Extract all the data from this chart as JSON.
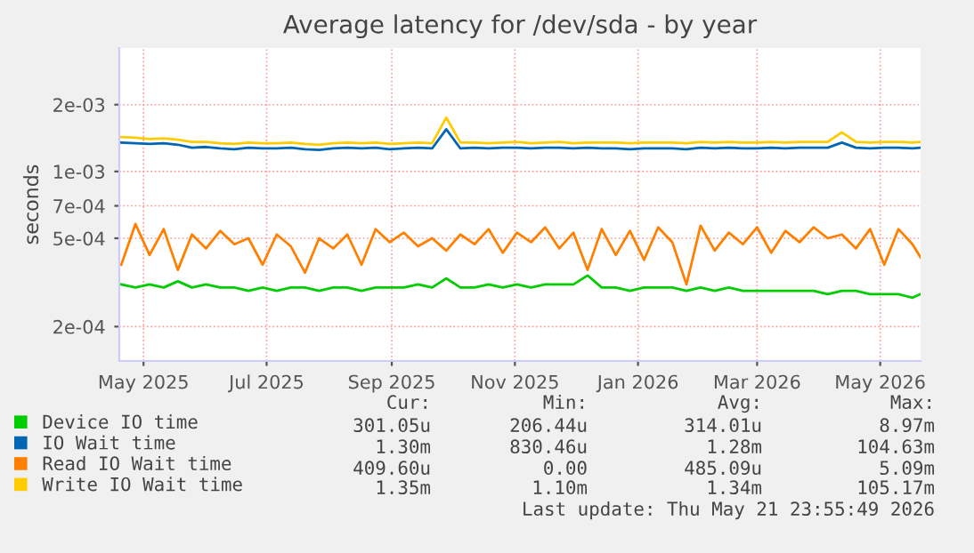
{
  "chart_data": {
    "type": "line",
    "title": "Average latency for /dev/sda - by year",
    "ylabel": "seconds",
    "x": [
      "2025-04-20",
      "2025-04-27",
      "2025-05-04",
      "2025-05-11",
      "2025-05-18",
      "2025-05-25",
      "2025-06-01",
      "2025-06-08",
      "2025-06-15",
      "2025-06-22",
      "2025-06-29",
      "2025-07-06",
      "2025-07-13",
      "2025-07-20",
      "2025-07-27",
      "2025-08-03",
      "2025-08-10",
      "2025-08-17",
      "2025-08-24",
      "2025-08-31",
      "2025-09-07",
      "2025-09-14",
      "2025-09-21",
      "2025-09-28",
      "2025-10-05",
      "2025-10-12",
      "2025-10-19",
      "2025-10-26",
      "2025-11-02",
      "2025-11-09",
      "2025-11-16",
      "2025-11-23",
      "2025-11-30",
      "2025-12-07",
      "2025-12-14",
      "2025-12-21",
      "2025-12-28",
      "2026-01-04",
      "2026-01-11",
      "2026-01-18",
      "2026-01-25",
      "2026-02-01",
      "2026-02-08",
      "2026-02-15",
      "2026-02-22",
      "2026-03-01",
      "2026-03-08",
      "2026-03-15",
      "2026-03-22",
      "2026-03-29",
      "2026-04-05",
      "2026-04-12",
      "2026-04-19",
      "2026-04-26",
      "2026-05-03",
      "2026-05-10",
      "2026-05-17",
      "2026-05-21"
    ],
    "series": [
      {
        "name": "Device IO time",
        "color": "#00cc00",
        "values": [
          0.00031,
          0.0003,
          0.00031,
          0.0003,
          0.00032,
          0.0003,
          0.00031,
          0.0003,
          0.0003,
          0.00029,
          0.0003,
          0.00029,
          0.0003,
          0.0003,
          0.00029,
          0.0003,
          0.0003,
          0.00029,
          0.0003,
          0.0003,
          0.0003,
          0.00031,
          0.0003,
          0.00033,
          0.0003,
          0.0003,
          0.00031,
          0.0003,
          0.00031,
          0.0003,
          0.00031,
          0.00031,
          0.00031,
          0.00034,
          0.0003,
          0.0003,
          0.00029,
          0.0003,
          0.0003,
          0.0003,
          0.00029,
          0.0003,
          0.00029,
          0.0003,
          0.00029,
          0.00029,
          0.00029,
          0.00029,
          0.00029,
          0.00029,
          0.00028,
          0.00029,
          0.00029,
          0.00028,
          0.00028,
          0.00028,
          0.00027,
          0.00028
        ]
      },
      {
        "name": "IO Wait time",
        "color": "#0066b3",
        "values": [
          0.00135,
          0.00134,
          0.00133,
          0.00134,
          0.00132,
          0.00128,
          0.00129,
          0.00127,
          0.00126,
          0.00128,
          0.00127,
          0.00127,
          0.00128,
          0.00126,
          0.00125,
          0.00127,
          0.00128,
          0.00127,
          0.00128,
          0.00126,
          0.00127,
          0.00128,
          0.00127,
          0.00155,
          0.00127,
          0.00128,
          0.00127,
          0.00128,
          0.00128,
          0.00127,
          0.00128,
          0.00128,
          0.00127,
          0.00128,
          0.00127,
          0.00127,
          0.00126,
          0.00127,
          0.00127,
          0.00127,
          0.00126,
          0.00128,
          0.00127,
          0.00128,
          0.00127,
          0.00127,
          0.00128,
          0.00127,
          0.00128,
          0.00128,
          0.00128,
          0.00135,
          0.00128,
          0.00127,
          0.00128,
          0.00128,
          0.00127,
          0.00128
        ]
      },
      {
        "name": "Read IO Wait time",
        "color": "#ff8000",
        "values": [
          0.00038,
          0.00058,
          0.00042,
          0.00055,
          0.00036,
          0.00052,
          0.00045,
          0.00054,
          0.00047,
          0.0005,
          0.00038,
          0.00052,
          0.00046,
          0.00035,
          0.0005,
          0.00045,
          0.00052,
          0.00038,
          0.00055,
          0.00048,
          0.00053,
          0.00046,
          0.0005,
          0.00044,
          0.00052,
          0.00047,
          0.00055,
          0.00043,
          0.00053,
          0.00048,
          0.00056,
          0.00045,
          0.00053,
          0.00036,
          0.00055,
          0.00042,
          0.00054,
          0.0004,
          0.00056,
          0.00048,
          0.00031,
          0.00057,
          0.00044,
          0.00053,
          0.00047,
          0.00056,
          0.00043,
          0.00054,
          0.00048,
          0.00056,
          0.0005,
          0.00052,
          0.00045,
          0.00055,
          0.00038,
          0.00055,
          0.00047,
          0.00041
        ]
      },
      {
        "name": "Write IO Wait time",
        "color": "#ffcc00",
        "values": [
          0.00143,
          0.00142,
          0.0014,
          0.00141,
          0.00139,
          0.00136,
          0.00136,
          0.00134,
          0.00133,
          0.00135,
          0.00134,
          0.00134,
          0.00135,
          0.00133,
          0.00132,
          0.00134,
          0.00135,
          0.00134,
          0.00135,
          0.00133,
          0.00134,
          0.00135,
          0.00134,
          0.00175,
          0.00135,
          0.00135,
          0.00134,
          0.00135,
          0.00136,
          0.00134,
          0.00135,
          0.00136,
          0.00134,
          0.00135,
          0.00135,
          0.00135,
          0.00134,
          0.00135,
          0.00135,
          0.00135,
          0.00134,
          0.00136,
          0.00135,
          0.00136,
          0.00135,
          0.00135,
          0.00136,
          0.00135,
          0.00136,
          0.00136,
          0.00136,
          0.0015,
          0.00136,
          0.00135,
          0.00136,
          0.00136,
          0.00135,
          0.00136
        ]
      }
    ],
    "log": "y",
    "ylim": [
      0.00014,
      0.0036
    ],
    "yticks": [
      {
        "value": 0.0002,
        "label": "2e-04"
      },
      {
        "value": 0.0005,
        "label": "5e-04"
      },
      {
        "value": 0.0007,
        "label": "7e-04"
      },
      {
        "value": 0.001,
        "label": "1e-03"
      },
      {
        "value": 0.002,
        "label": "2e-03"
      }
    ],
    "xlim": [
      "2025-04-19",
      "2026-05-21"
    ],
    "xticks": [
      {
        "value": "2025-05-01",
        "label": "May 2025"
      },
      {
        "value": "2025-07-01",
        "label": "Jul 2025"
      },
      {
        "value": "2025-09-01",
        "label": "Sep 2025"
      },
      {
        "value": "2025-11-01",
        "label": "Nov 2025"
      },
      {
        "value": "2026-01-01",
        "label": "Jan 2026"
      },
      {
        "value": "2026-03-01",
        "label": "Mar 2026"
      },
      {
        "value": "2026-05-01",
        "label": "May 2026"
      }
    ],
    "grid": true,
    "legend": "bottom left",
    "annotations": [
      "Cur:",
      "Min:",
      "Avg:",
      "Max:",
      "301.05u",
      "206.44u",
      "314.01u",
      "8.97m",
      "1.30m",
      "830.46u",
      "1.28m",
      "104.63m",
      "409.60u",
      "0.00",
      "485.09u",
      "5.09m",
      "1.35m",
      "1.10m",
      "1.34m",
      "105.17m",
      "Last update: Thu May 21 23:55:49 2026"
    ]
  }
}
